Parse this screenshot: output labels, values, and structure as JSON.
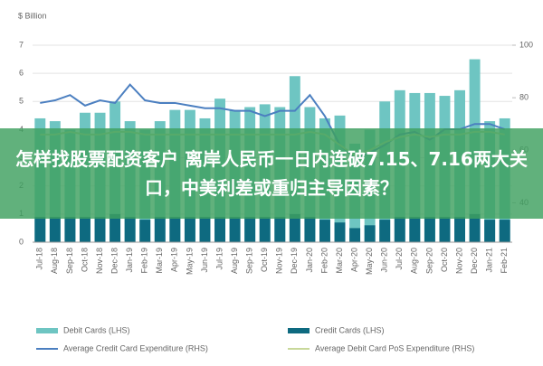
{
  "chart_data": {
    "type": "bar",
    "title": "$ Billion",
    "annotation": "怎样找股票配资客户 离岸人民币一日内连破7.15、7.16两大关口，中美利差或重归主导因素？",
    "categories": [
      "Jul-18",
      "Aug-18",
      "Sep-18",
      "Oct-18",
      "Nov-18",
      "Dec-18",
      "Jan-19",
      "Feb-19",
      "Mar-19",
      "Apr-19",
      "May-19",
      "Jun-19",
      "Jul-19",
      "Aug-19",
      "Sep-19",
      "Oct-19",
      "Nov-19",
      "Dec-19",
      "Jan-20",
      "Feb-20",
      "Mar-20",
      "Apr-20",
      "May-20",
      "Jun-20",
      "Jul-20",
      "Aug-20",
      "Sep-20",
      "Oct-20",
      "Nov-20",
      "Dec-20",
      "Jan-21",
      "Feb-21"
    ],
    "series": [
      {
        "name": "Debit Cards (LHS)",
        "color": "#6ec5c2",
        "values": [
          4.4,
          4.3,
          4.0,
          4.6,
          4.6,
          5.0,
          4.3,
          4.0,
          4.3,
          4.7,
          4.7,
          4.4,
          5.1,
          4.7,
          4.8,
          4.9,
          4.8,
          5.9,
          4.8,
          4.4,
          4.5,
          3.5,
          4.0,
          5.0,
          5.4,
          5.3,
          5.3,
          5.2,
          5.4,
          6.5,
          4.3,
          4.4
        ]
      },
      {
        "name": "Credit Cards (LHS)",
        "color": "#0e6a80",
        "values": [
          0.9,
          0.9,
          0.9,
          0.9,
          0.9,
          1.0,
          0.9,
          0.8,
          0.9,
          0.9,
          0.9,
          0.9,
          0.9,
          0.9,
          0.9,
          0.9,
          0.9,
          1.0,
          0.9,
          0.8,
          0.7,
          0.5,
          0.6,
          0.8,
          0.9,
          0.9,
          0.9,
          0.9,
          0.9,
          1.0,
          0.8,
          0.8
        ]
      },
      {
        "name": "Average Credit Card Expenditure (RHS)",
        "color": "#4b7fc0",
        "axis": "y2",
        "values": [
          78,
          79,
          81,
          77,
          79,
          78,
          85,
          79,
          78,
          78,
          77,
          76,
          76,
          75,
          75,
          73,
          75,
          75,
          81,
          73,
          62,
          57,
          59,
          62,
          66,
          67,
          64,
          68,
          68,
          70,
          70,
          68
        ]
      },
      {
        "name": "Average Debit Card PoS Expenditure (RHS)",
        "color": "#c8d89a",
        "axis": "y2",
        "values": [
          66,
          66,
          67,
          66,
          66,
          67,
          67,
          66,
          66,
          66,
          66,
          66,
          66,
          66,
          66,
          66,
          66,
          66,
          67,
          66,
          62,
          58,
          60,
          63,
          65,
          66,
          65,
          66,
          66,
          67,
          67,
          66
        ]
      }
    ],
    "ylim": [
      0,
      7
    ],
    "yticks": [
      0,
      1,
      2,
      3,
      4,
      5,
      6,
      7
    ],
    "y2lim": [
      25,
      100
    ],
    "y2ticks": [
      40,
      60,
      80,
      100
    ],
    "grid": true
  }
}
